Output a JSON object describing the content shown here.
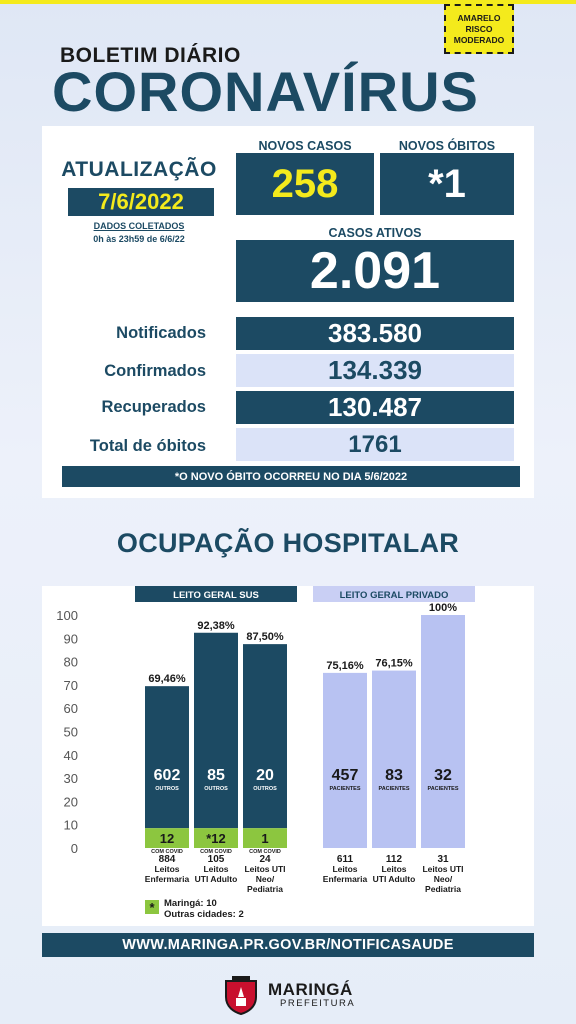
{
  "risk_badge": {
    "line1": "AMARELO",
    "line2": "RISCO",
    "line3": "MODERADO"
  },
  "header": {
    "subtitle": "BOLETIM DIÁRIO",
    "title": "CORONAVÍRUS"
  },
  "update": {
    "label": "ATUALIZAÇÃO",
    "date": "7/6/2022",
    "collected_label": "DADOS COLETADOS",
    "collected_range": "0h às 23h59 de 6/6/22"
  },
  "stats": {
    "novos_casos_label": "NOVOS CASOS",
    "novos_casos": "258",
    "novos_obitos_label": "NOVOS ÓBITOS",
    "novos_obitos": "*1",
    "casos_ativos_label": "CASOS ATIVOS",
    "casos_ativos": "2.091"
  },
  "totals": [
    {
      "label": "Notificados",
      "value": "383.580"
    },
    {
      "label": "Confirmados",
      "value": "134.339"
    },
    {
      "label": "Recuperados",
      "value": "130.487"
    },
    {
      "label": "Total de óbitos",
      "value": "1761"
    }
  ],
  "note": "*O NOVO  ÓBITO OCORREU NO DIA 5/6/2022",
  "section_title": "OCUPAÇÃO HOSPITALAR",
  "chart_data": {
    "type": "bar",
    "ylim": [
      0,
      100
    ],
    "yticks": [
      "0",
      "10",
      "20",
      "30",
      "40",
      "50",
      "60",
      "70",
      "80",
      "90",
      "100"
    ],
    "groups": [
      {
        "name": "LEITO GERAL SUS",
        "bars": [
          {
            "pct": 69.46,
            "pct_label": "69,46%",
            "main": "602",
            "main_sub": "OUTROS",
            "covid": "12",
            "covid_sub": "COM COVID",
            "covid_pct": 8.5,
            "count": "884",
            "cat1": "Leitos",
            "cat2": "Enfermaria",
            "cat3": ""
          },
          {
            "pct": 92.38,
            "pct_label": "92,38%",
            "main": "85",
            "main_sub": "OUTROS",
            "covid": "*12",
            "covid_sub": "COM COVID",
            "covid_pct": 8.5,
            "count": "105",
            "cat1": "Leitos",
            "cat2": "UTI Adulto",
            "cat3": ""
          },
          {
            "pct": 87.5,
            "pct_label": "87,50%",
            "main": "20",
            "main_sub": "OUTROS",
            "covid": "1",
            "covid_sub": "COM COVID",
            "covid_pct": 8.5,
            "count": "24",
            "cat1": "Leitos UTI",
            "cat2": "Neo/",
            "cat3": "Pediatria"
          }
        ]
      },
      {
        "name": "LEITO GERAL PRIVADO",
        "bars": [
          {
            "pct": 75.16,
            "pct_label": "75,16%",
            "main": "457",
            "main_sub": "PACIENTES",
            "count": "611",
            "cat1": "Leitos",
            "cat2": "Enfermaria",
            "cat3": ""
          },
          {
            "pct": 76.15,
            "pct_label": "76,15%",
            "main": "83",
            "main_sub": "PACIENTES",
            "count": "112",
            "cat1": "Leitos",
            "cat2": "UTI Adulto",
            "cat3": ""
          },
          {
            "pct": 100,
            "pct_label": "100%",
            "main": "32",
            "main_sub": "PACIENTES",
            "count": "31",
            "cat1": "Leitos UTI",
            "cat2": "Neo/",
            "cat3": "Pediatria"
          }
        ]
      }
    ],
    "legend": {
      "marker": "*",
      "line1": "Maringá: 10",
      "line2": "Outras cidades: 2"
    },
    "colors": {
      "sus": "#1c4a63",
      "covid": "#8cc63f",
      "private": "#b8c2f2",
      "private_header": "#c9cff4"
    }
  },
  "footer": "WWW.MARINGA.PR.GOV.BR/NOTIFICASAUDE",
  "logo": {
    "name": "MARINGÁ",
    "sub": "PREFEITURA"
  },
  "colors": {
    "primary": "#1c4a63",
    "yellow": "#f4ea1c",
    "light": "#dbe3f8"
  }
}
